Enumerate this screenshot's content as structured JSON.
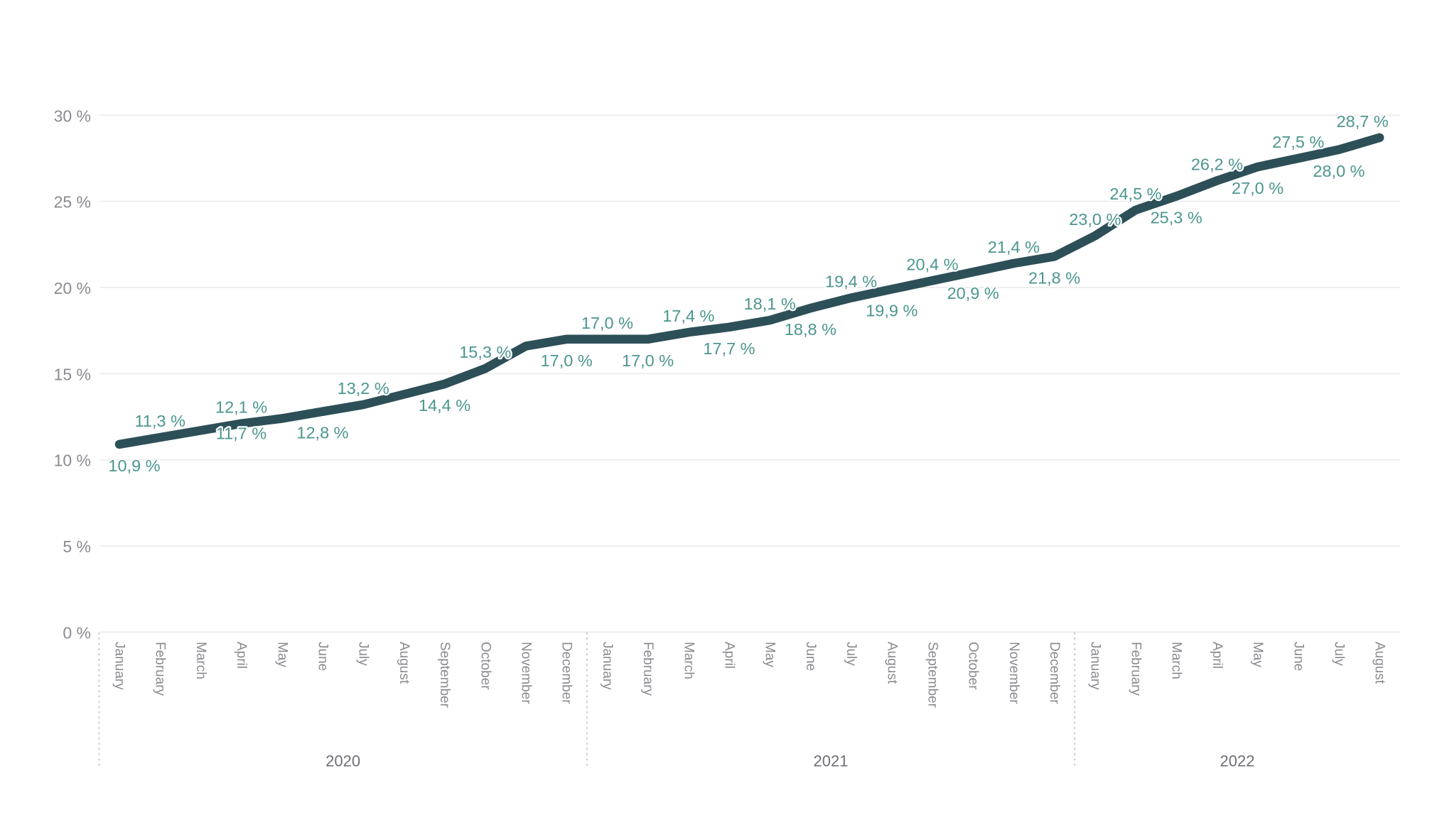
{
  "chart_data": {
    "type": "line",
    "unit": "%",
    "decimal_separator": ",",
    "grid": true,
    "legend": null,
    "colors": {
      "background": "#ffffff",
      "line": "#2d4f58",
      "data_label": "#4b968e",
      "axis_tick_label": "#8a8a91",
      "month_label": "#8a8a91",
      "year_label": "#6f6f78",
      "gridline": "#ededed",
      "year_separator": "#c7c7c7"
    },
    "y_axis": {
      "min": 0,
      "max": 30,
      "tick_step": 5,
      "ticks": [
        {
          "value": 30,
          "label": "30 %"
        },
        {
          "value": 25,
          "label": "25 %"
        },
        {
          "value": 20,
          "label": "20 %"
        },
        {
          "value": 15,
          "label": "15 %"
        },
        {
          "value": 10,
          "label": "10 %"
        },
        {
          "value": 5,
          "label": "5 %"
        },
        {
          "value": 0,
          "label": "0 %"
        }
      ]
    },
    "x_axis": {
      "year_groups": [
        {
          "label": "2020",
          "month_count": 12
        },
        {
          "label": "2021",
          "month_count": 12
        },
        {
          "label": "2022",
          "month_count": 8
        }
      ]
    },
    "series": [
      {
        "name": "percentage-over-time",
        "points": [
          {
            "year": "2020",
            "month": "January",
            "value": 10.9,
            "label": "10,9 %",
            "side": "below",
            "label_dx": 21
          },
          {
            "year": "2020",
            "month": "February",
            "value": 11.3,
            "label": "11,3 %",
            "side": "above"
          },
          {
            "year": "2020",
            "month": "March",
            "value": 11.7,
            "label": "11,7 %",
            "side": "below",
            "label_dx": 57,
            "label_dy": 4
          },
          {
            "year": "2020",
            "month": "April",
            "value": 12.1,
            "label": "12,1 %",
            "side": "above"
          },
          {
            "year": "2020",
            "month": "May",
            "value": 12.4,
            "label": null
          },
          {
            "year": "2020",
            "month": "June",
            "value": 12.8,
            "label": "12,8 %",
            "side": "below"
          },
          {
            "year": "2020",
            "month": "July",
            "value": 13.2,
            "label": "13,2 %",
            "side": "above"
          },
          {
            "year": "2020",
            "month": "August",
            "value": 13.8,
            "label": null
          },
          {
            "year": "2020",
            "month": "September",
            "value": 14.4,
            "label": "14,4 %",
            "side": "below"
          },
          {
            "year": "2020",
            "month": "October",
            "value": 15.3,
            "label": "15,3 %",
            "side": "above"
          },
          {
            "year": "2020",
            "month": "November",
            "value": 16.6,
            "label": null
          },
          {
            "year": "2020",
            "month": "December",
            "value": 17.0,
            "label": "17,0 %",
            "side": "below"
          },
          {
            "year": "2021",
            "month": "January",
            "value": 17.0,
            "label": "17,0 %",
            "side": "above"
          },
          {
            "year": "2021",
            "month": "February",
            "value": 17.0,
            "label": "17,0 %",
            "side": "below"
          },
          {
            "year": "2021",
            "month": "March",
            "value": 17.4,
            "label": "17,4 %",
            "side": "above"
          },
          {
            "year": "2021",
            "month": "April",
            "value": 17.7,
            "label": "17,7 %",
            "side": "below"
          },
          {
            "year": "2021",
            "month": "May",
            "value": 18.1,
            "label": "18,1 %",
            "side": "above"
          },
          {
            "year": "2021",
            "month": "June",
            "value": 18.8,
            "label": "18,8 %",
            "side": "below"
          },
          {
            "year": "2021",
            "month": "July",
            "value": 19.4,
            "label": "19,4 %",
            "side": "above"
          },
          {
            "year": "2021",
            "month": "August",
            "value": 19.9,
            "label": "19,9 %",
            "side": "below"
          },
          {
            "year": "2021",
            "month": "September",
            "value": 20.4,
            "label": "20,4 %",
            "side": "above"
          },
          {
            "year": "2021",
            "month": "October",
            "value": 20.9,
            "label": "20,9 %",
            "side": "below"
          },
          {
            "year": "2021",
            "month": "November",
            "value": 21.4,
            "label": "21,4 %",
            "side": "above"
          },
          {
            "year": "2021",
            "month": "December",
            "value": 21.8,
            "label": "21,8 %",
            "side": "below"
          },
          {
            "year": "2022",
            "month": "January",
            "value": 23.0,
            "label": "23,0 %",
            "side": "above"
          },
          {
            "year": "2022",
            "month": "February",
            "value": 24.5,
            "label": "24,5 %",
            "side": "above"
          },
          {
            "year": "2022",
            "month": "March",
            "value": 25.3,
            "label": "25,3 %",
            "side": "below"
          },
          {
            "year": "2022",
            "month": "April",
            "value": 26.2,
            "label": "26,2 %",
            "side": "above"
          },
          {
            "year": "2022",
            "month": "May",
            "value": 27.0,
            "label": "27,0 %",
            "side": "below"
          },
          {
            "year": "2022",
            "month": "June",
            "value": 27.5,
            "label": "27,5 %",
            "side": "above"
          },
          {
            "year": "2022",
            "month": "July",
            "value": 28.0,
            "label": "28,0 %",
            "side": "below"
          },
          {
            "year": "2022",
            "month": "August",
            "value": 28.7,
            "label": "28,7 %",
            "side": "above",
            "label_dx": -24
          }
        ]
      }
    ]
  }
}
